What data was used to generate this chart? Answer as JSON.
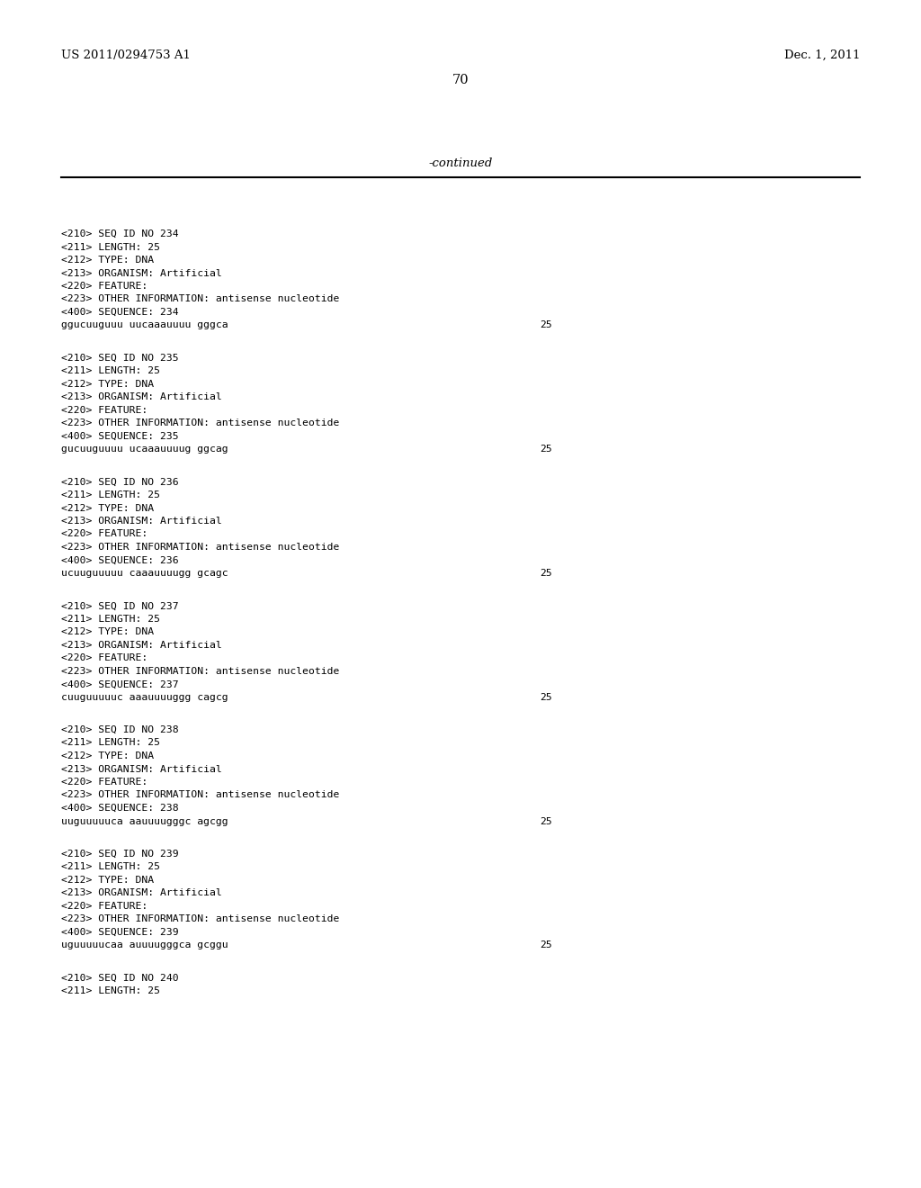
{
  "bg_color": "#ffffff",
  "header_left": "US 2011/0294753 A1",
  "header_right": "Dec. 1, 2011",
  "page_number": "70",
  "continued_label": "-continued",
  "monospace_font_size": 8.2,
  "header_font_size": 9.5,
  "page_num_font_size": 10.5,
  "continued_font_size": 9.5,
  "entries": [
    {
      "seq_id": "234",
      "length": "25",
      "type": "DNA",
      "organism": "Artificial",
      "other_info": "antisense nucleotide",
      "sequence": "ggucuuguuu uucaaauuuu gggca",
      "seq_length_val": "25"
    },
    {
      "seq_id": "235",
      "length": "25",
      "type": "DNA",
      "organism": "Artificial",
      "other_info": "antisense nucleotide",
      "sequence": "gucuuguuuu ucaaauuuug ggcag",
      "seq_length_val": "25"
    },
    {
      "seq_id": "236",
      "length": "25",
      "type": "DNA",
      "organism": "Artificial",
      "other_info": "antisense nucleotide",
      "sequence": "ucuuguuuuu caaauuuugg gcagc",
      "seq_length_val": "25"
    },
    {
      "seq_id": "237",
      "length": "25",
      "type": "DNA",
      "organism": "Artificial",
      "other_info": "antisense nucleotide",
      "sequence": "cuuguuuuuc aaauuuuggg cagcg",
      "seq_length_val": "25"
    },
    {
      "seq_id": "238",
      "length": "25",
      "type": "DNA",
      "organism": "Artificial",
      "other_info": "antisense nucleotide",
      "sequence": "uuguuuuuca aauuuugggc agcgg",
      "seq_length_val": "25"
    },
    {
      "seq_id": "239",
      "length": "25",
      "type": "DNA",
      "organism": "Artificial",
      "other_info": "antisense nucleotide",
      "sequence": "uguuuuucaa auuuugggca gcggu",
      "seq_length_val": "25"
    },
    {
      "seq_id": "240",
      "length": "25",
      "type": null,
      "organism": null,
      "other_info": null,
      "sequence": null,
      "seq_length_val": null
    }
  ]
}
